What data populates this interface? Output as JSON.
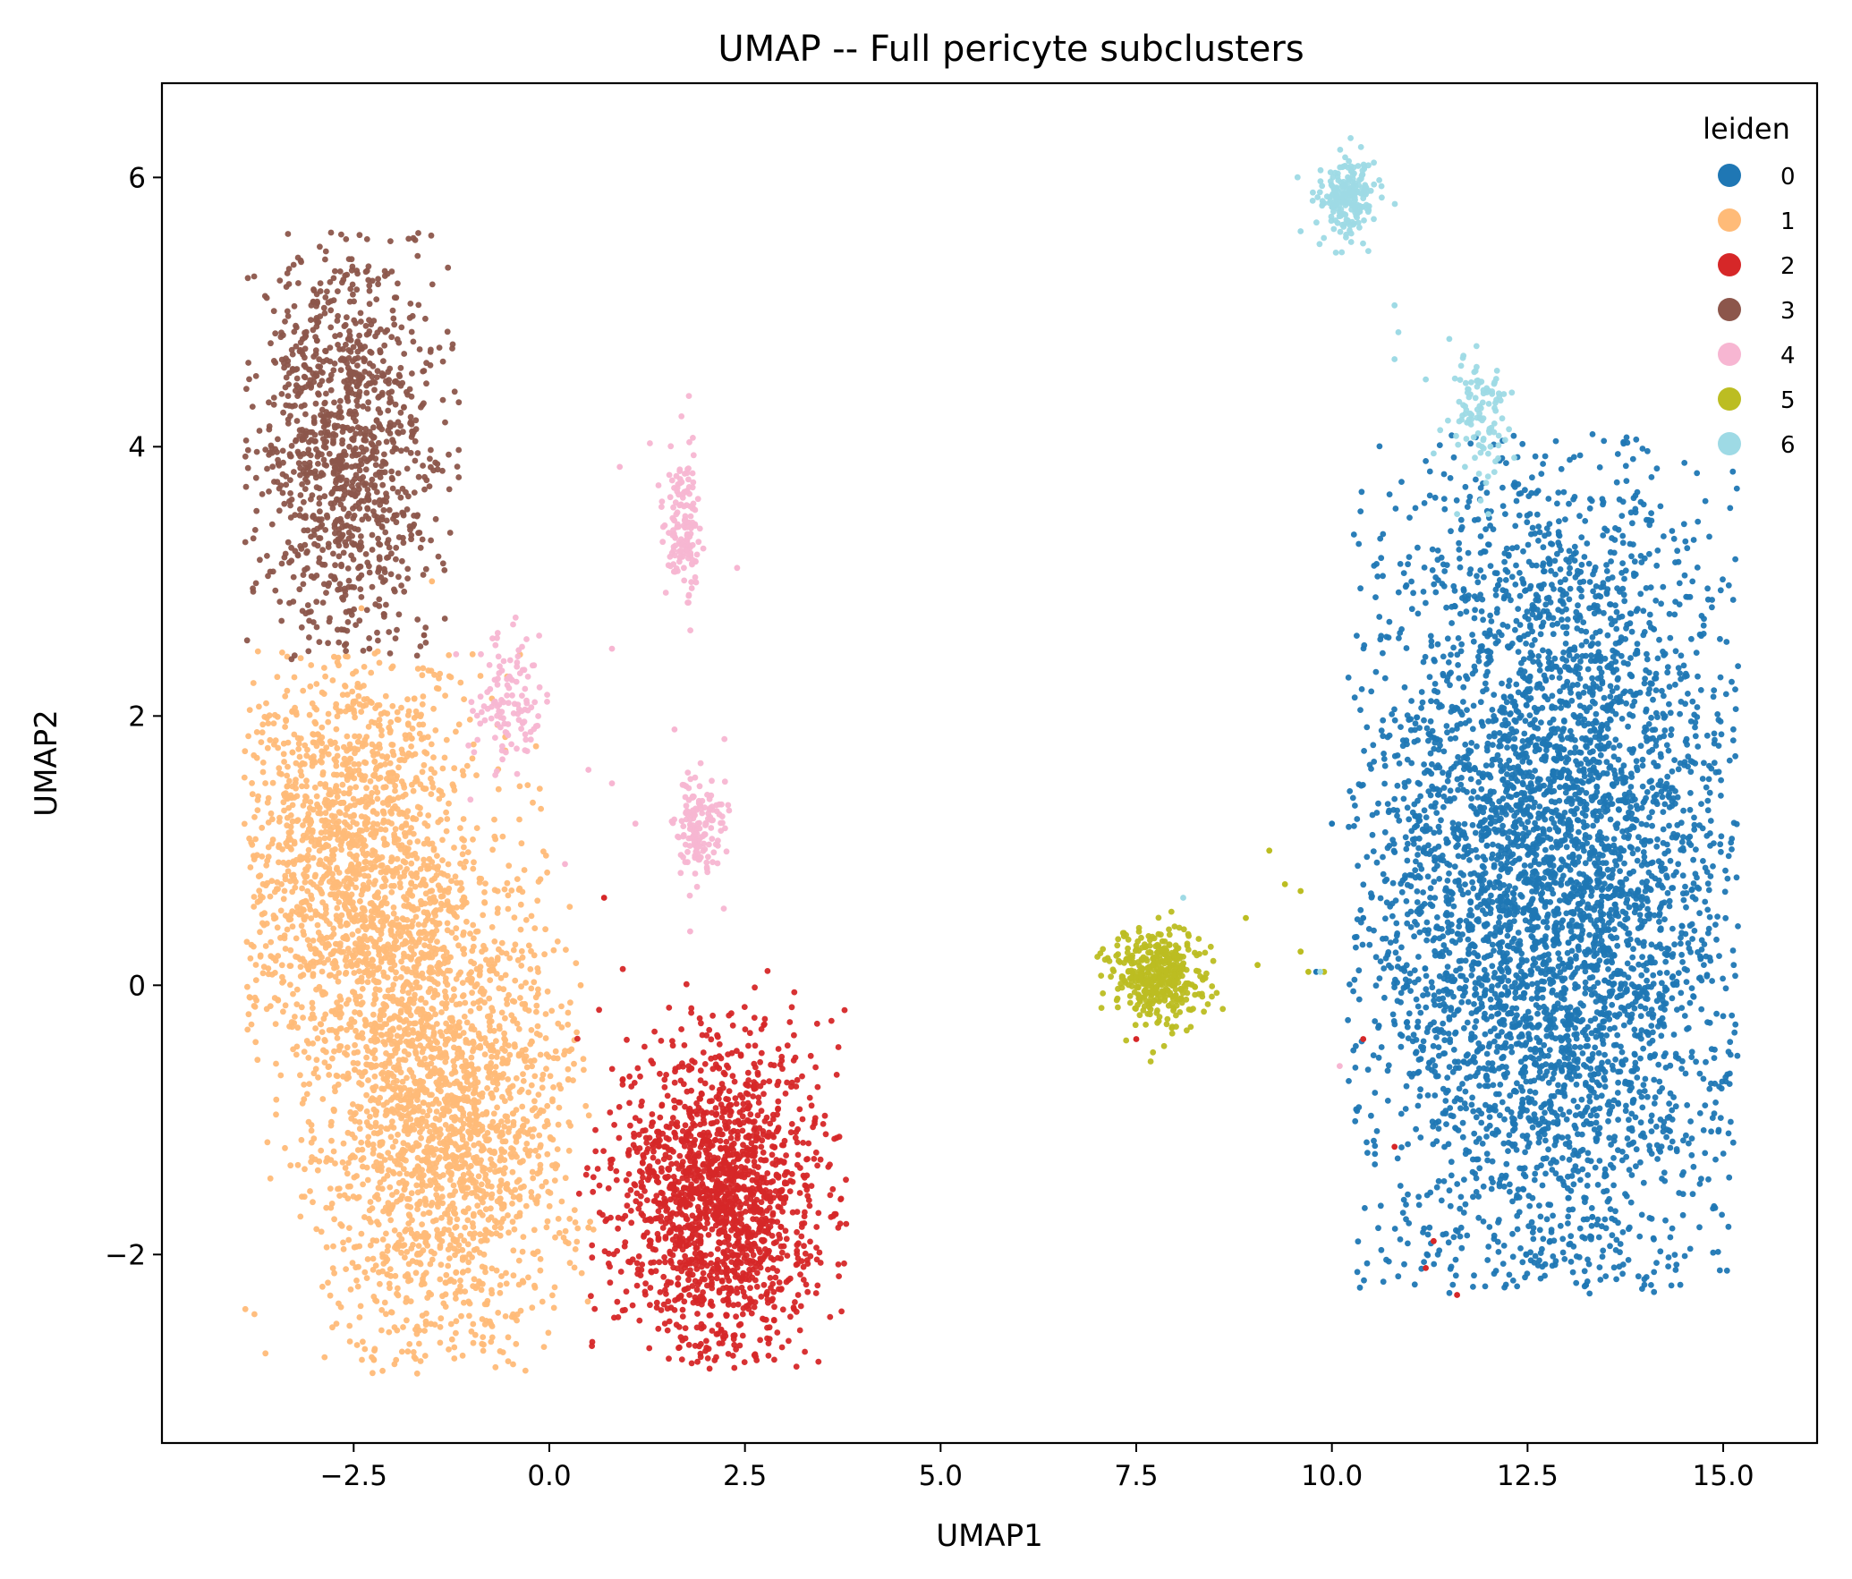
{
  "chart_data": {
    "type": "scatter",
    "title": "UMAP -- Full pericyte subclusters",
    "xlabel": "UMAP1",
    "ylabel": "UMAP2",
    "xlim": [
      -4.95,
      16.2
    ],
    "ylim": [
      -3.4,
      6.7
    ],
    "xticks": [
      -2.5,
      0.0,
      2.5,
      5.0,
      7.5,
      10.0,
      12.5,
      15.0
    ],
    "xtick_labels": [
      "−2.5",
      "0.0",
      "2.5",
      "5.0",
      "7.5",
      "10.0",
      "12.5",
      "15.0"
    ],
    "yticks": [
      -2,
      0,
      2,
      4,
      6
    ],
    "ytick_labels": [
      "−2",
      "0",
      "2",
      "4",
      "6"
    ],
    "grid": false,
    "legend": {
      "title": "leiden",
      "position": "top-right"
    },
    "series": [
      {
        "name": "0",
        "color": "#1f77b4",
        "approx_points": 5200,
        "blobs": [
          {
            "center": [
              12.8,
              0.7
            ],
            "spread": [
              1.2,
              1.6
            ],
            "extent_x": [
              10.2,
              15.2
            ],
            "extent_y": [
              -2.3,
              4.1
            ],
            "share": 1.0
          }
        ],
        "outliers": [
          [
            10.0,
            1.2
          ],
          [
            10.4,
            0.5
          ],
          [
            9.8,
            0.1
          ],
          [
            10.6,
            -0.3
          ]
        ]
      },
      {
        "name": "1",
        "color": "#ffbb78",
        "approx_points": 3800,
        "blobs": [
          {
            "center": [
              -2.5,
              0.9
            ],
            "spread": [
              0.75,
              0.8
            ],
            "share": 0.45
          },
          {
            "center": [
              -1.3,
              -1.0
            ],
            "spread": [
              0.8,
              0.9
            ],
            "share": 0.55
          }
        ],
        "extent_x": [
          -3.9,
          0.6
        ],
        "extent_y": [
          -2.9,
          2.5
        ],
        "outliers": [
          [
            0.4,
            0.0
          ],
          [
            0.5,
            -1.8
          ],
          [
            -2.4,
            2.8
          ],
          [
            -1.5,
            3.0
          ]
        ]
      },
      {
        "name": "2",
        "color": "#d62728",
        "approx_points": 1700,
        "blobs": [
          {
            "center": [
              2.2,
              -1.6
            ],
            "spread": [
              0.65,
              0.6
            ],
            "extent_x": [
              0.3,
              3.8
            ],
            "extent_y": [
              -2.85,
              0.15
            ],
            "share": 1.0
          }
        ],
        "outliers": [
          [
            0.7,
            0.65
          ],
          [
            7.5,
            -0.4
          ],
          [
            10.4,
            -0.4
          ],
          [
            10.8,
            -1.2
          ],
          [
            11.2,
            -2.1
          ],
          [
            11.6,
            -2.3
          ],
          [
            11.3,
            -1.9
          ]
        ]
      },
      {
        "name": "3",
        "color": "#8c564b",
        "approx_points": 1200,
        "blobs": [
          {
            "center": [
              -2.6,
              4.0
            ],
            "spread": [
              0.6,
              0.75
            ],
            "extent_x": [
              -3.9,
              -1.1
            ],
            "extent_y": [
              2.4,
              5.6
            ],
            "share": 1.0
          }
        ],
        "outliers": [
          [
            -2.3,
            2.5
          ],
          [
            -1.6,
            2.6
          ]
        ]
      },
      {
        "name": "4",
        "color": "#f7b6d2",
        "approx_points": 420,
        "blobs": [
          {
            "center": [
              1.7,
              3.4
            ],
            "spread": [
              0.12,
              0.3
            ],
            "share": 0.36
          },
          {
            "center": [
              1.9,
              1.15
            ],
            "spread": [
              0.16,
              0.22
            ],
            "share": 0.36
          },
          {
            "center": [
              -0.55,
              2.1
            ],
            "spread": [
              0.25,
              0.25
            ],
            "share": 0.28
          }
        ],
        "outliers": [
          [
            0.9,
            3.85
          ],
          [
            0.8,
            1.5
          ],
          [
            0.5,
            1.6
          ],
          [
            1.1,
            1.2
          ],
          [
            0.2,
            0.9
          ],
          [
            1.6,
            1.9
          ],
          [
            10.1,
            -0.6
          ],
          [
            1.8,
            0.4
          ],
          [
            2.4,
            3.1
          ],
          [
            0.8,
            2.5
          ]
        ]
      },
      {
        "name": "5",
        "color": "#bcbd22",
        "approx_points": 420,
        "blobs": [
          {
            "center": [
              7.8,
              0.05
            ],
            "spread": [
              0.3,
              0.18
            ],
            "extent_x": [
              6.9,
              8.7
            ],
            "extent_y": [
              -0.6,
              0.55
            ],
            "share": 1.0
          }
        ],
        "outliers": [
          [
            8.9,
            0.5
          ],
          [
            9.2,
            1.0
          ],
          [
            9.4,
            0.75
          ],
          [
            9.6,
            0.7
          ],
          [
            9.6,
            0.25
          ],
          [
            9.7,
            0.1
          ],
          [
            9.9,
            0.1
          ],
          [
            9.05,
            0.15
          ]
        ]
      },
      {
        "name": "6",
        "color": "#9edae5",
        "approx_points": 320,
        "blobs": [
          {
            "center": [
              10.2,
              5.85
            ],
            "spread": [
              0.18,
              0.15
            ],
            "share": 0.68
          },
          {
            "center": [
              11.9,
              4.25
            ],
            "spread": [
              0.18,
              0.22
            ],
            "share": 0.32
          }
        ],
        "outliers": [
          [
            9.6,
            5.6
          ],
          [
            10.8,
            5.05
          ],
          [
            10.85,
            4.85
          ],
          [
            10.8,
            4.65
          ],
          [
            11.2,
            4.5
          ],
          [
            11.5,
            4.8
          ],
          [
            11.3,
            3.95
          ],
          [
            11.7,
            3.85
          ],
          [
            11.6,
            3.5
          ],
          [
            11.9,
            3.6
          ],
          [
            12.0,
            3.5
          ],
          [
            8.1,
            0.65
          ],
          [
            9.85,
            0.1
          ]
        ]
      }
    ]
  }
}
